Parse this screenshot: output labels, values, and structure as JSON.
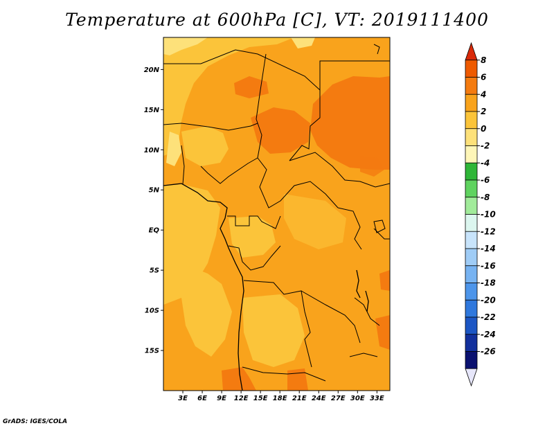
{
  "title": "Temperature at 600hPa [C], VT: 2019111400",
  "footer": "GrADS: IGES/COLA",
  "map": {
    "lon_range": [
      0,
      35
    ],
    "lat_range": [
      -20,
      24
    ],
    "lon_ticks": [
      {
        "value": 3,
        "label": "3E"
      },
      {
        "value": 6,
        "label": "6E"
      },
      {
        "value": 9,
        "label": "9E"
      },
      {
        "value": 12,
        "label": "12E"
      },
      {
        "value": 15,
        "label": "15E"
      },
      {
        "value": 18,
        "label": "18E"
      },
      {
        "value": 21,
        "label": "21E"
      },
      {
        "value": 24,
        "label": "24E"
      },
      {
        "value": 27,
        "label": "27E"
      },
      {
        "value": 30,
        "label": "30E"
      },
      {
        "value": 33,
        "label": "33E"
      }
    ],
    "lat_ticks": [
      {
        "value": 20,
        "label": "20N"
      },
      {
        "value": 15,
        "label": "15N"
      },
      {
        "value": 10,
        "label": "10N"
      },
      {
        "value": 5,
        "label": "5N"
      },
      {
        "value": 0,
        "label": "EQ"
      },
      {
        "value": -5,
        "label": "5S"
      },
      {
        "value": -10,
        "label": "10S"
      },
      {
        "value": -15,
        "label": "15S"
      }
    ]
  },
  "colorbar": {
    "levels": [
      "8",
      "6",
      "4",
      "2",
      "0",
      "-2",
      "-4",
      "-6",
      "-8",
      "-10",
      "-12",
      "-14",
      "-16",
      "-18",
      "-20",
      "-22",
      "-24",
      "-26"
    ],
    "colors": [
      "#d92a0a",
      "#ee5a00",
      "#f47b10",
      "#f9a31c",
      "#fbc43a",
      "#fde17a",
      "#fef6b8",
      "#2fb638",
      "#5fd35f",
      "#a1eb9a",
      "#dcf6ef",
      "#c8e4fb",
      "#9fccf6",
      "#77b3f2",
      "#4d95ea",
      "#2f78dd",
      "#1c56c4",
      "#12309c",
      "#0a1170",
      "#e6e6fa"
    ]
  }
}
